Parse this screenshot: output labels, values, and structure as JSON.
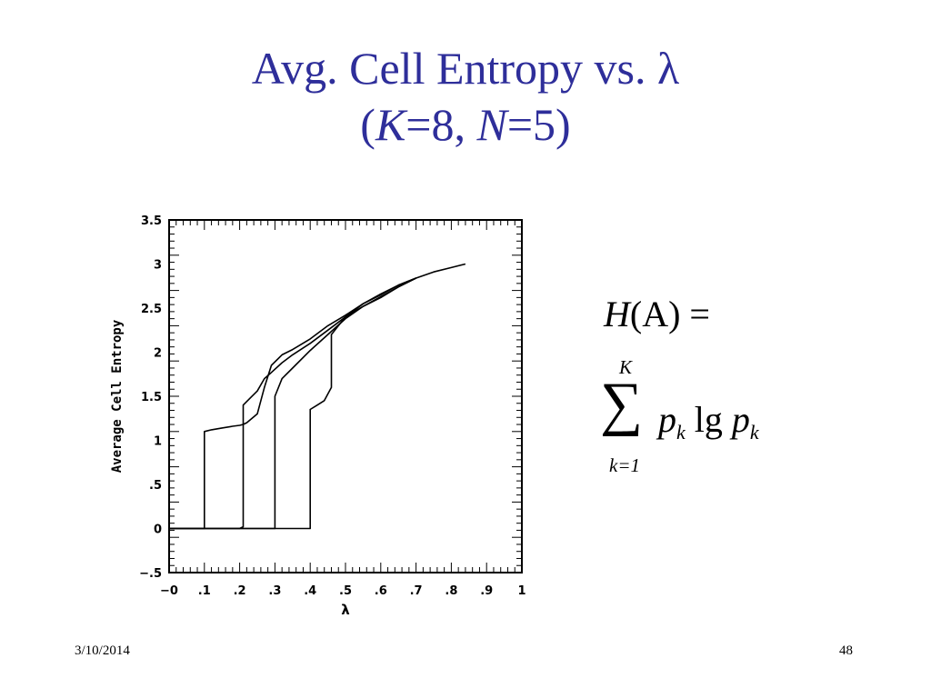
{
  "slide": {
    "title_line1": "Avg. Cell Entropy vs. λ",
    "title_open": "(",
    "title_K": "K",
    "title_mid": "=8, ",
    "title_N": "N",
    "title_close": "=5)",
    "title_color": "#2e2e9a"
  },
  "formula": {
    "lhs_H": "H",
    "lhs_rest": "(A) =",
    "sum_upper": "K",
    "sum_symbol": "∑",
    "term_p1": "p",
    "term_k1": "k",
    "term_lg": " lg ",
    "term_p2": "p",
    "term_k2": "k",
    "sum_lower": "k=1"
  },
  "footer": {
    "date": "3/10/2014",
    "page": "48"
  },
  "chart_data": {
    "type": "line",
    "xlabel": "λ",
    "ylabel": "Average Cell Entropy",
    "xlim": [
      0,
      1
    ],
    "ylim": [
      -0.5,
      3.5
    ],
    "x_ticks": [
      0,
      0.1,
      0.2,
      0.3,
      0.4,
      0.5,
      0.6,
      0.7,
      0.8,
      0.9,
      1
    ],
    "x_tick_labels": [
      "−0",
      ".1",
      ".2",
      ".3",
      ".4",
      ".5",
      ".6",
      ".7",
      ".8",
      ".9",
      "1"
    ],
    "y_ticks": [
      -0.5,
      0,
      0.5,
      1,
      1.5,
      2,
      2.5,
      3,
      3.5
    ],
    "y_tick_labels": [
      "−.5",
      "0",
      ".5",
      "1",
      "1.5",
      "2",
      "2.5",
      "3",
      "3.5"
    ],
    "grid": false,
    "series": [
      {
        "x": [
          0,
          0.1,
          0.1,
          0.12,
          0.15,
          0.18,
          0.2,
          0.21,
          0.22,
          0.25,
          0.27,
          0.29,
          0.32,
          0.35,
          0.4,
          0.45,
          0.5,
          0.55,
          0.6,
          0.65,
          0.7,
          0.75,
          0.8,
          0.84
        ],
        "y": [
          0,
          0,
          1.1,
          1.12,
          1.14,
          1.16,
          1.17,
          1.18,
          1.2,
          1.3,
          1.6,
          1.85,
          1.97,
          2.03,
          2.15,
          2.3,
          2.42,
          2.55,
          2.66,
          2.76,
          2.84,
          2.91,
          2.96,
          3.0
        ]
      },
      {
        "x": [
          0,
          0.2,
          0.21,
          0.21,
          0.23,
          0.25,
          0.27,
          0.29,
          0.32,
          0.35,
          0.4,
          0.45,
          0.5,
          0.55,
          0.6,
          0.65,
          0.7
        ],
        "y": [
          0,
          0,
          0.02,
          1.4,
          1.48,
          1.56,
          1.7,
          1.77,
          1.88,
          1.97,
          2.1,
          2.25,
          2.4,
          2.52,
          2.62,
          2.74,
          2.84
        ]
      },
      {
        "x": [
          0,
          0.3,
          0.3,
          0.32,
          0.35,
          0.4,
          0.45,
          0.5,
          0.55,
          0.6,
          0.65,
          0.7
        ],
        "y": [
          0,
          0,
          1.5,
          1.7,
          1.82,
          2.02,
          2.2,
          2.38,
          2.52,
          2.63,
          2.74,
          2.84
        ]
      },
      {
        "x": [
          0,
          0.38,
          0.4,
          0.4,
          0.42,
          0.44,
          0.46,
          0.46,
          0.48,
          0.5,
          0.55,
          0.6,
          0.65,
          0.7
        ],
        "y": [
          0,
          0,
          0,
          1.35,
          1.4,
          1.45,
          1.6,
          2.2,
          2.3,
          2.4,
          2.55,
          2.65,
          2.76,
          2.84
        ]
      }
    ]
  }
}
